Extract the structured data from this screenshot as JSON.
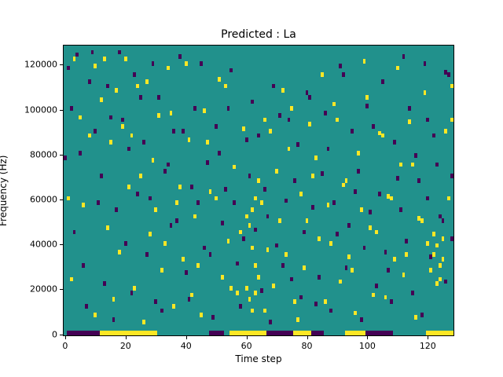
{
  "title": "Predicted : La",
  "xlabel": "Time step",
  "ylabel": "Frequency (Hz)",
  "x_ticks": [
    0,
    20,
    40,
    60,
    80,
    100,
    120
  ],
  "y_ticks": [
    0,
    20000,
    40000,
    60000,
    80000,
    100000,
    120000
  ],
  "chart_data": {
    "type": "heatmap",
    "title": "Predicted : La",
    "xlabel": "Time step",
    "ylabel": "Frequency (Hz)",
    "xlim": [
      0,
      129
    ],
    "ylim": [
      0,
      129000
    ],
    "n_time": 129,
    "n_freq": 129,
    "freq_bin_hz": 1000,
    "grid": false,
    "legend": "none",
    "colors": {
      "background": "#21918c",
      "high": "#fde725",
      "low": "#440154",
      "frame": "#000000"
    },
    "value_legend": {
      "teal": "mid value",
      "yellow": "high value",
      "purple": "low value"
    },
    "yellow_cells": [
      [
        1,
        60
      ],
      [
        2,
        24
      ],
      [
        3,
        122
      ],
      [
        5,
        96
      ],
      [
        6,
        57
      ],
      [
        8,
        88
      ],
      [
        10,
        8
      ],
      [
        10,
        119
      ],
      [
        12,
        104
      ],
      [
        13,
        122
      ],
      [
        14,
        47
      ],
      [
        15,
        85
      ],
      [
        16,
        15
      ],
      [
        17,
        108
      ],
      [
        18,
        36
      ],
      [
        19,
        92
      ],
      [
        20,
        122
      ],
      [
        21,
        65
      ],
      [
        22,
        88
      ],
      [
        23,
        20
      ],
      [
        24,
        110
      ],
      [
        25,
        70
      ],
      [
        26,
        5
      ],
      [
        27,
        112
      ],
      [
        28,
        44
      ],
      [
        29,
        77
      ],
      [
        30,
        55
      ],
      [
        31,
        97
      ],
      [
        32,
        28
      ],
      [
        33,
        40
      ],
      [
        34,
        118
      ],
      [
        35,
        98
      ],
      [
        36,
        12
      ],
      [
        37,
        58
      ],
      [
        38,
        65
      ],
      [
        39,
        33
      ],
      [
        40,
        120
      ],
      [
        41,
        86
      ],
      [
        42,
        17
      ],
      [
        43,
        52
      ],
      [
        44,
        30
      ],
      [
        45,
        8
      ],
      [
        46,
        99
      ],
      [
        47,
        85
      ],
      [
        48,
        63
      ],
      [
        50,
        60
      ],
      [
        51,
        113
      ],
      [
        52,
        25
      ],
      [
        53,
        110
      ],
      [
        54,
        41
      ],
      [
        55,
        20
      ],
      [
        56,
        74
      ],
      [
        57,
        18
      ],
      [
        58,
        45
      ],
      [
        59,
        91
      ],
      [
        60,
        52
      ],
      [
        60,
        20
      ],
      [
        61,
        48
      ],
      [
        61,
        15
      ],
      [
        62,
        55
      ],
      [
        62,
        38
      ],
      [
        62,
        10
      ],
      [
        63,
        60
      ],
      [
        63,
        30
      ],
      [
        63,
        18
      ],
      [
        64,
        25
      ],
      [
        64,
        68
      ],
      [
        65,
        58
      ],
      [
        66,
        10
      ],
      [
        66,
        95
      ],
      [
        67,
        37
      ],
      [
        68,
        90
      ],
      [
        69,
        21
      ],
      [
        70,
        72
      ],
      [
        71,
        50
      ],
      [
        72,
        108
      ],
      [
        73,
        35
      ],
      [
        74,
        82
      ],
      [
        75,
        100
      ],
      [
        76,
        14
      ],
      [
        77,
        6
      ],
      [
        78,
        62
      ],
      [
        79,
        29
      ],
      [
        80,
        50
      ],
      [
        81,
        93
      ],
      [
        82,
        70
      ],
      [
        83,
        78
      ],
      [
        84,
        42
      ],
      [
        85,
        115
      ],
      [
        86,
        14
      ],
      [
        87,
        57
      ],
      [
        88,
        40
      ],
      [
        89,
        102
      ],
      [
        90,
        95
      ],
      [
        91,
        23
      ],
      [
        92,
        66
      ],
      [
        93,
        68
      ],
      [
        94,
        34
      ],
      [
        95,
        28
      ],
      [
        96,
        9
      ],
      [
        97,
        80
      ],
      [
        98,
        55
      ],
      [
        99,
        121
      ],
      [
        100,
        105
      ],
      [
        101,
        47
      ],
      [
        102,
        17
      ],
      [
        103,
        45
      ],
      [
        104,
        89
      ],
      [
        105,
        88
      ],
      [
        106,
        16
      ],
      [
        107,
        61
      ],
      [
        108,
        60
      ],
      [
        109,
        33
      ],
      [
        110,
        118
      ],
      [
        111,
        75
      ],
      [
        112,
        26
      ],
      [
        113,
        35
      ],
      [
        114,
        94
      ],
      [
        115,
        75
      ],
      [
        116,
        7
      ],
      [
        117,
        51
      ],
      [
        118,
        50
      ],
      [
        119,
        107
      ],
      [
        120,
        40
      ],
      [
        121,
        28
      ],
      [
        122,
        35
      ],
      [
        122,
        44
      ],
      [
        123,
        22
      ],
      [
        123,
        39
      ],
      [
        124,
        30
      ],
      [
        124,
        24
      ],
      [
        125,
        42
      ],
      [
        125,
        33
      ],
      [
        126,
        90
      ],
      [
        127,
        60
      ],
      [
        128,
        110
      ],
      [
        128,
        95
      ]
    ],
    "purple_cells": [
      [
        0,
        78
      ],
      [
        1,
        118
      ],
      [
        2,
        100
      ],
      [
        3,
        45
      ],
      [
        4,
        124
      ],
      [
        5,
        80
      ],
      [
        6,
        30
      ],
      [
        7,
        12
      ],
      [
        8,
        112
      ],
      [
        9,
        125
      ],
      [
        10,
        90
      ],
      [
        11,
        58
      ],
      [
        12,
        70
      ],
      [
        13,
        22
      ],
      [
        14,
        110
      ],
      [
        15,
        96
      ],
      [
        16,
        6
      ],
      [
        17,
        55
      ],
      [
        18,
        125
      ],
      [
        19,
        95
      ],
      [
        20,
        40
      ],
      [
        21,
        82
      ],
      [
        22,
        18
      ],
      [
        23,
        115
      ],
      [
        24,
        62
      ],
      [
        25,
        105
      ],
      [
        26,
        85
      ],
      [
        27,
        35
      ],
      [
        28,
        60
      ],
      [
        29,
        120
      ],
      [
        30,
        14
      ],
      [
        31,
        105
      ],
      [
        32,
        10
      ],
      [
        33,
        72
      ],
      [
        34,
        75
      ],
      [
        35,
        48
      ],
      [
        36,
        90
      ],
      [
        37,
        50
      ],
      [
        38,
        123
      ],
      [
        39,
        90
      ],
      [
        40,
        27
      ],
      [
        41,
        15
      ],
      [
        42,
        65
      ],
      [
        43,
        100
      ],
      [
        44,
        58
      ],
      [
        45,
        120
      ],
      [
        46,
        38
      ],
      [
        47,
        76
      ],
      [
        48,
        35
      ],
      [
        49,
        7
      ],
      [
        50,
        92
      ],
      [
        51,
        80
      ],
      [
        52,
        49
      ],
      [
        53,
        64
      ],
      [
        54,
        100
      ],
      [
        55,
        117
      ],
      [
        56,
        58
      ],
      [
        57,
        31
      ],
      [
        58,
        12
      ],
      [
        59,
        42
      ],
      [
        60,
        86
      ],
      [
        61,
        70
      ],
      [
        62,
        103
      ],
      [
        63,
        46
      ],
      [
        64,
        88
      ],
      [
        65,
        19
      ],
      [
        66,
        64
      ],
      [
        67,
        52
      ],
      [
        68,
        5
      ],
      [
        69,
        110
      ],
      [
        70,
        39
      ],
      [
        71,
        97
      ],
      [
        72,
        30
      ],
      [
        73,
        59
      ],
      [
        74,
        95
      ],
      [
        75,
        24
      ],
      [
        76,
        68
      ],
      [
        77,
        84
      ],
      [
        78,
        16
      ],
      [
        79,
        45
      ],
      [
        80,
        107
      ],
      [
        81,
        105
      ],
      [
        82,
        56
      ],
      [
        83,
        13
      ],
      [
        84,
        25
      ],
      [
        85,
        71
      ],
      [
        86,
        98
      ],
      [
        87,
        82
      ],
      [
        88,
        10
      ],
      [
        89,
        58
      ],
      [
        90,
        44
      ],
      [
        91,
        119
      ],
      [
        92,
        115
      ],
      [
        93,
        29
      ],
      [
        94,
        48
      ],
      [
        95,
        90
      ],
      [
        96,
        63
      ],
      [
        97,
        72
      ],
      [
        98,
        6
      ],
      [
        99,
        38
      ],
      [
        100,
        101
      ],
      [
        101,
        54
      ],
      [
        102,
        92
      ],
      [
        103,
        21
      ],
      [
        104,
        62
      ],
      [
        105,
        112
      ],
      [
        106,
        36
      ],
      [
        107,
        28
      ],
      [
        108,
        14
      ],
      [
        109,
        85
      ],
      [
        110,
        69
      ],
      [
        111,
        55
      ],
      [
        112,
        123
      ],
      [
        113,
        41
      ],
      [
        114,
        100
      ],
      [
        115,
        18
      ],
      [
        116,
        79
      ],
      [
        117,
        68
      ],
      [
        118,
        8
      ],
      [
        119,
        120
      ],
      [
        120,
        95
      ],
      [
        120,
        60
      ],
      [
        121,
        34
      ],
      [
        122,
        88
      ],
      [
        123,
        75
      ],
      [
        124,
        52
      ],
      [
        125,
        50
      ],
      [
        126,
        23
      ],
      [
        126,
        116
      ],
      [
        127,
        115
      ],
      [
        128,
        70
      ],
      [
        128,
        42
      ]
    ],
    "bottom_band_segments": [
      {
        "color": "purple",
        "from": 1,
        "to": 11
      },
      {
        "color": "yellow",
        "from": 12,
        "to": 30
      },
      {
        "color": "purple",
        "from": 48,
        "to": 52
      },
      {
        "color": "yellow",
        "from": 55,
        "to": 66
      },
      {
        "color": "purple",
        "from": 67,
        "to": 75
      },
      {
        "color": "yellow",
        "from": 76,
        "to": 81
      },
      {
        "color": "purple",
        "from": 82,
        "to": 85
      },
      {
        "color": "yellow",
        "from": 93,
        "to": 99
      },
      {
        "color": "purple",
        "from": 100,
        "to": 108
      },
      {
        "color": "yellow",
        "from": 120,
        "to": 128
      }
    ]
  }
}
